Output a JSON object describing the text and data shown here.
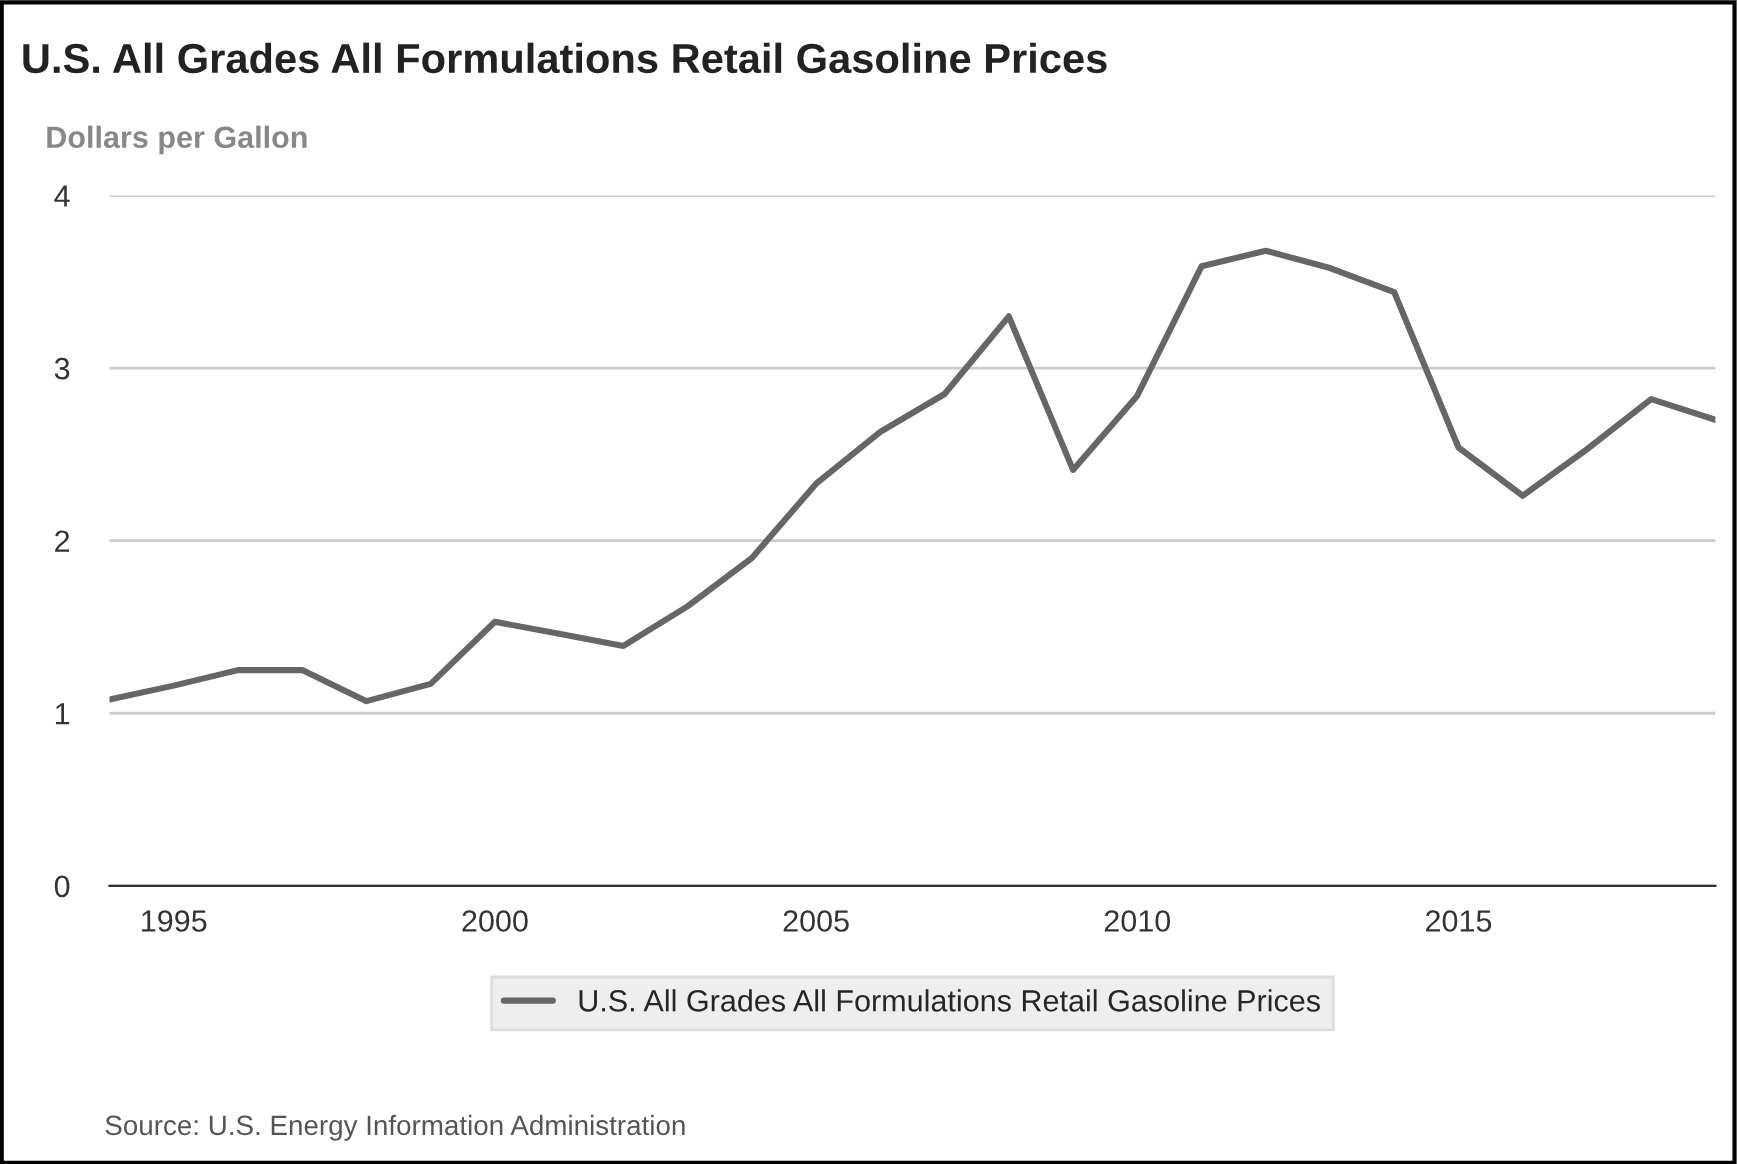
{
  "chart_data": {
    "type": "line",
    "title": "U.S. All Grades All Formulations Retail Gasoline Prices",
    "ylabel": "Dollars per Gallon",
    "x": [
      1994,
      1995,
      1996,
      1997,
      1998,
      1999,
      2000,
      2001,
      2002,
      2003,
      2004,
      2005,
      2006,
      2007,
      2008,
      2009,
      2010,
      2011,
      2012,
      2013,
      2014,
      2015,
      2016,
      2017,
      2018,
      2019
    ],
    "series": [
      {
        "name": "U.S. All Grades All Formulations Retail Gasoline Prices",
        "color": "#666666",
        "values": [
          1.08,
          1.16,
          1.25,
          1.25,
          1.07,
          1.17,
          1.53,
          1.46,
          1.39,
          1.62,
          1.9,
          2.33,
          2.63,
          2.85,
          3.3,
          2.41,
          2.84,
          3.59,
          3.68,
          3.58,
          3.44,
          2.54,
          2.26,
          2.53,
          2.82,
          2.7
        ]
      }
    ],
    "xlim": [
      1994,
      2019
    ],
    "xticks": [
      1995,
      2000,
      2005,
      2010,
      2015
    ],
    "ylim": [
      0,
      4
    ],
    "yticks": [
      0,
      1,
      2,
      3,
      4
    ],
    "grid": "y",
    "legend": "bottom",
    "marker": "none",
    "line_style": "solid",
    "annotations": [
      "Source: U.S. Energy Information Administration"
    ]
  }
}
